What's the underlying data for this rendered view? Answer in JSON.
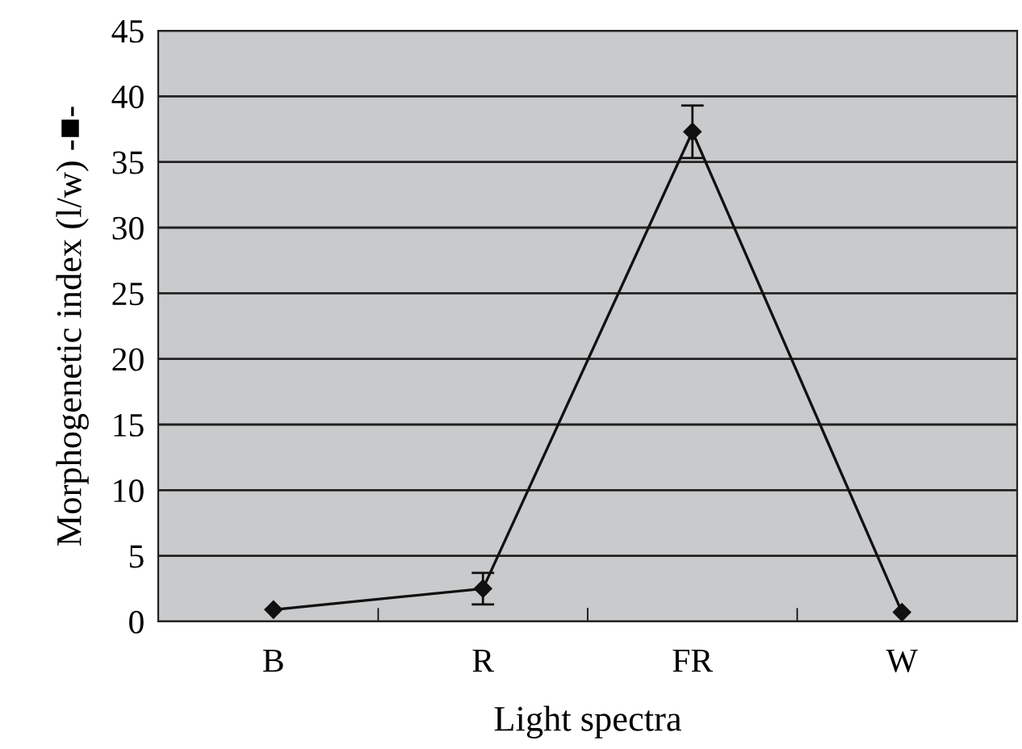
{
  "chart_data": {
    "type": "line",
    "xlabel": "Light spectra",
    "ylabel": "Morphogenetic index (l/w) -■-",
    "categories": [
      "B",
      "R",
      "FR",
      "W"
    ],
    "series": [
      {
        "color": "#111111",
        "values": [
          0.9,
          2.5,
          37.3,
          0.7
        ],
        "errors": [
          null,
          1.2,
          2.0,
          null
        ]
      }
    ],
    "ylim": [
      0,
      45
    ],
    "yticks": [
      0,
      5,
      10,
      15,
      20,
      25,
      30,
      35,
      40,
      45
    ],
    "grid": "y",
    "marker": "diamond",
    "line_style": "solid"
  }
}
